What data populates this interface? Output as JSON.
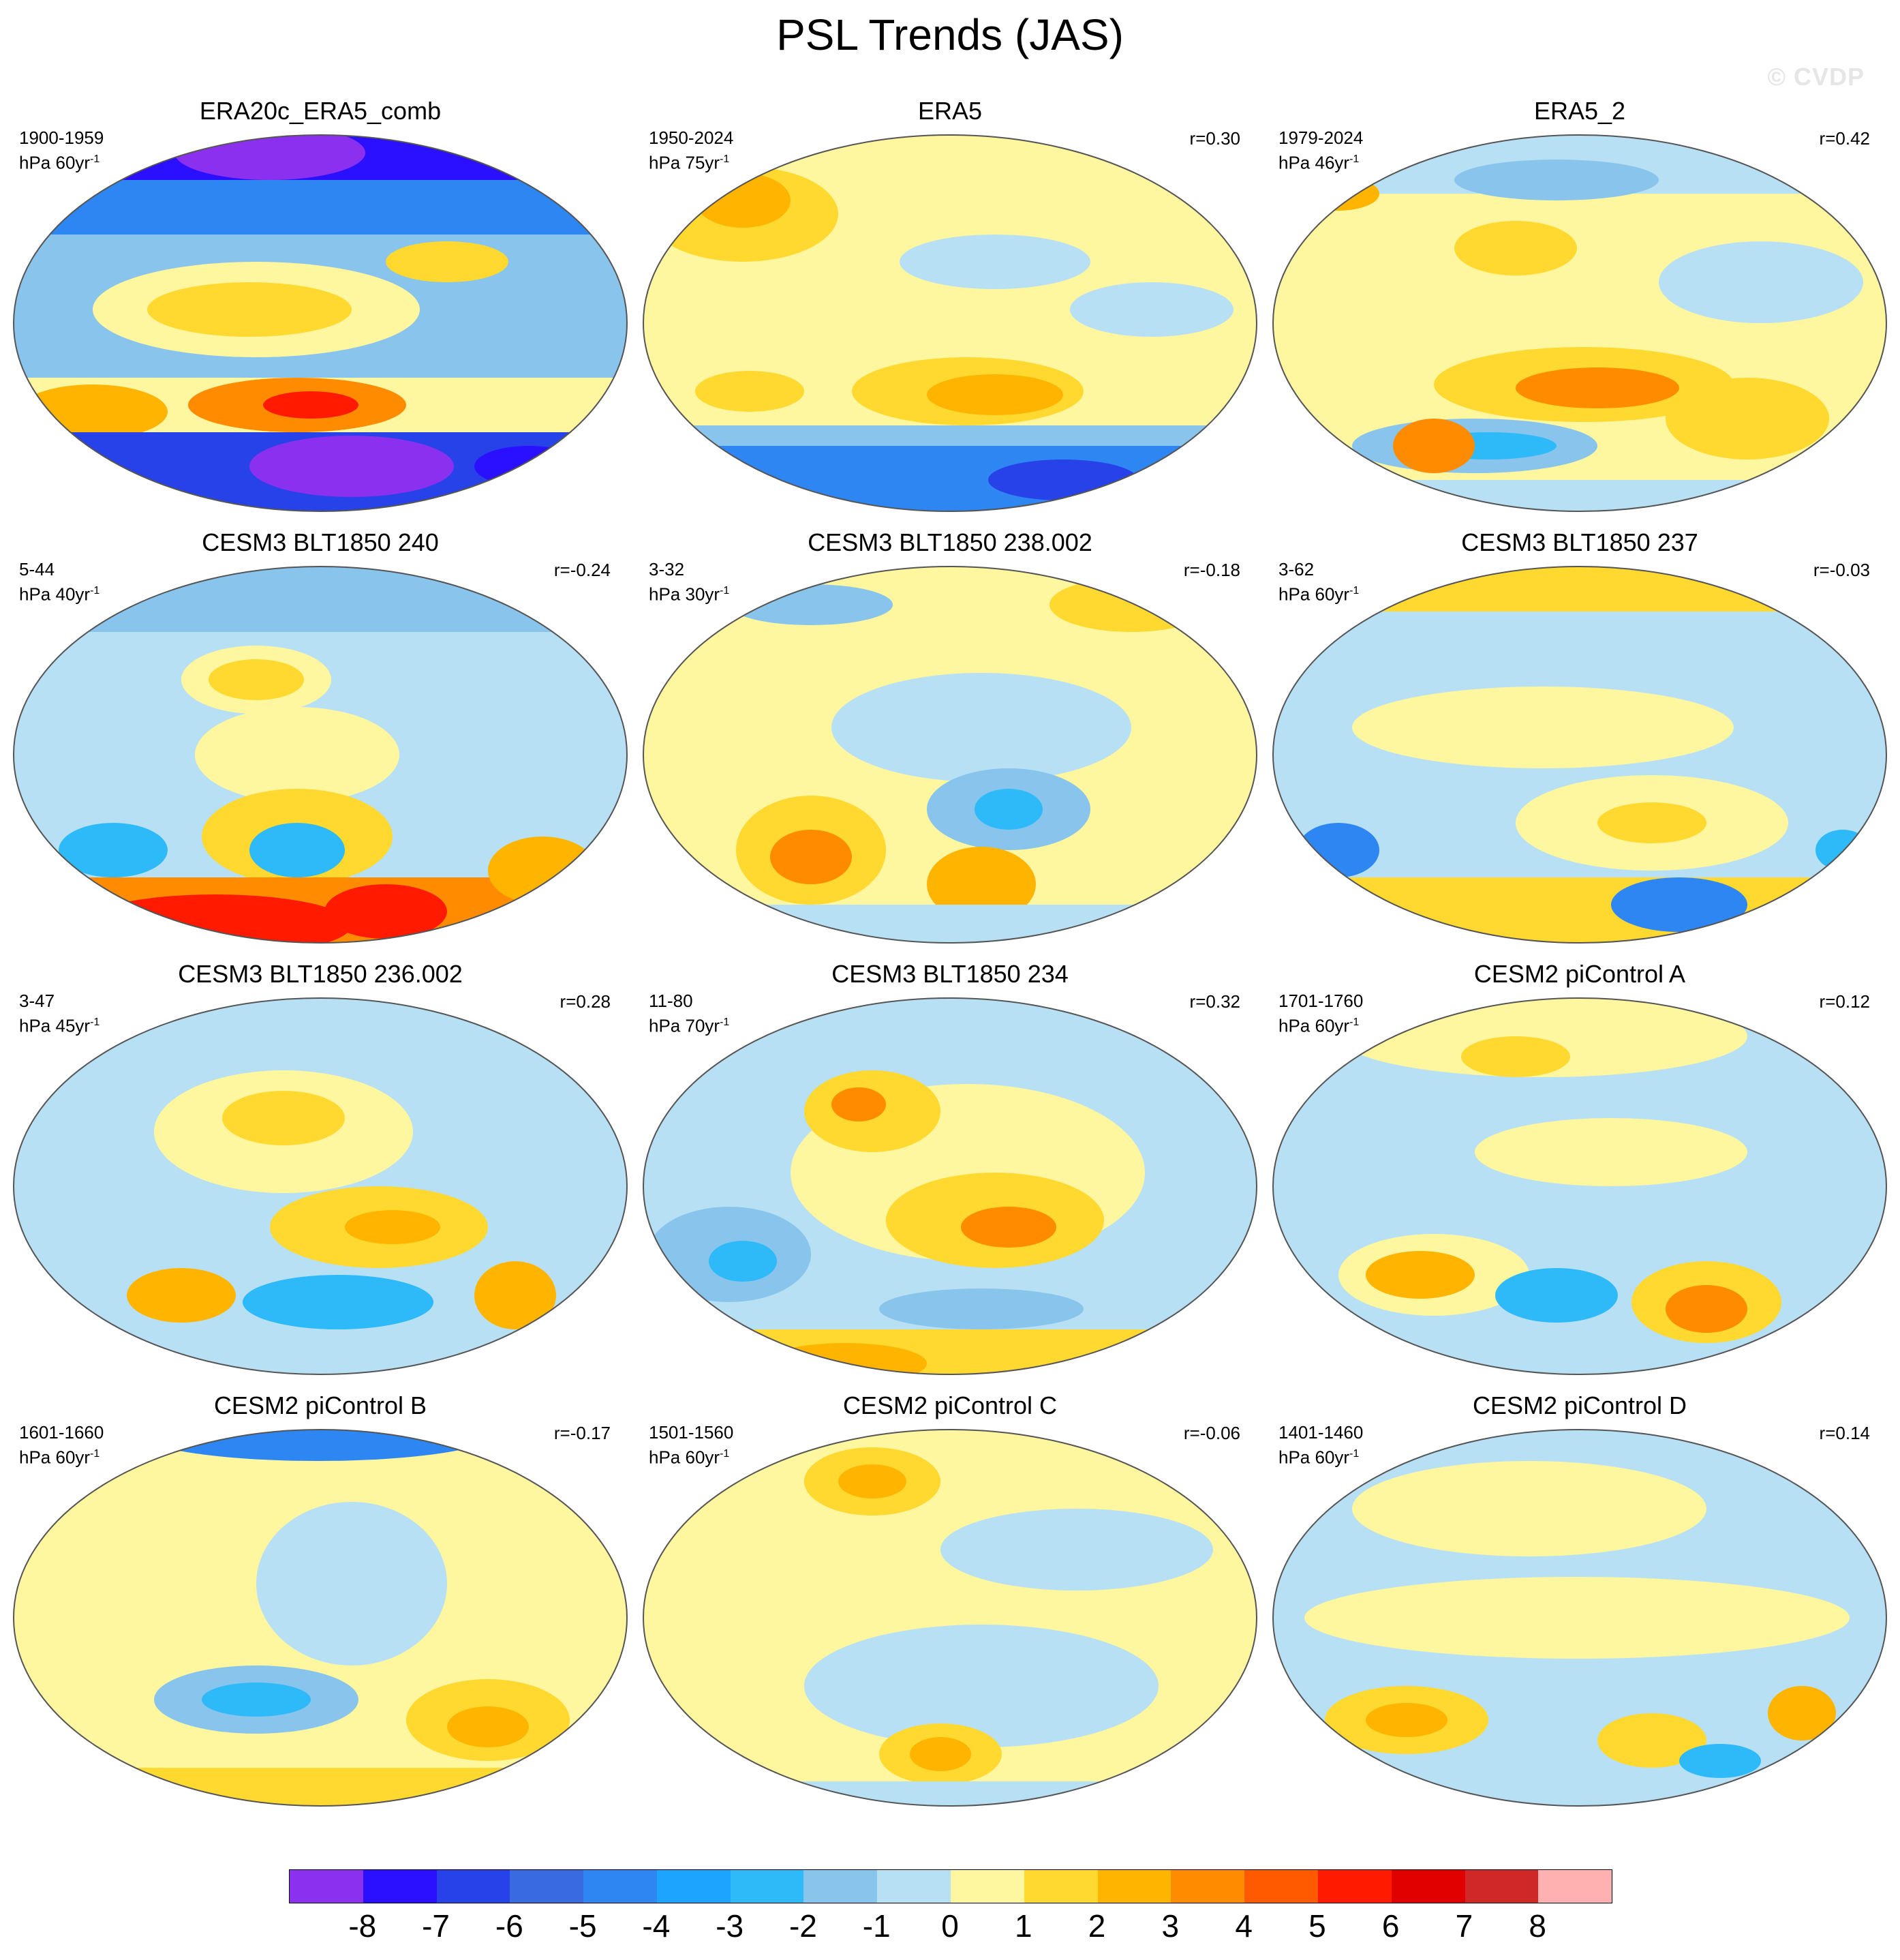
{
  "title": "PSL Trends (JAS)",
  "watermark": "© CVDP",
  "palette": [
    "#8c30f0",
    "#2a10ff",
    "#2642e8",
    "#3a6ae0",
    "#2e86f2",
    "#1ca4ff",
    "#2ebaf8",
    "#88c4ec",
    "#b8e0f4",
    "#fff6a0",
    "#ffd830",
    "#ffb400",
    "#ff8c00",
    "#ff5a00",
    "#ff1a00",
    "#e00000",
    "#d02828",
    "#ffb0b0"
  ],
  "colorbar_labels": [
    "-8",
    "-7",
    "-6",
    "-5",
    "-4",
    "-3",
    "-2",
    "-1",
    "0",
    "1",
    "2",
    "3",
    "4",
    "5",
    "6",
    "7",
    "8"
  ],
  "panels": [
    {
      "title": "ERA20c_ERA5_comb",
      "period": "1900-1959",
      "units": "hPa 60yr",
      "exp": "-1",
      "corr": ""
    },
    {
      "title": "ERA5",
      "period": "1950-2024",
      "units": "hPa 75yr",
      "exp": "-1",
      "corr": "r=0.30"
    },
    {
      "title": "ERA5_2",
      "period": "1979-2024",
      "units": "hPa 46yr",
      "exp": "-1",
      "corr": "r=0.42"
    },
    {
      "title": "CESM3 BLT1850 240",
      "period": "5-44",
      "units": "hPa 40yr",
      "exp": "-1",
      "corr": "r=-0.24"
    },
    {
      "title": "CESM3 BLT1850 238.002",
      "period": "3-32",
      "units": "hPa 30yr",
      "exp": "-1",
      "corr": "r=-0.18"
    },
    {
      "title": "CESM3 BLT1850 237",
      "period": "3-62",
      "units": "hPa 60yr",
      "exp": "-1",
      "corr": "r=-0.03"
    },
    {
      "title": "CESM3 BLT1850 236.002",
      "period": "3-47",
      "units": "hPa 45yr",
      "exp": "-1",
      "corr": "r=0.28"
    },
    {
      "title": "CESM3 BLT1850 234",
      "period": "11-80",
      "units": "hPa 70yr",
      "exp": "-1",
      "corr": "r=0.32"
    },
    {
      "title": "CESM2 piControl A",
      "period": "1701-1760",
      "units": "hPa 60yr",
      "exp": "-1",
      "corr": "r=0.12"
    },
    {
      "title": "CESM2 piControl B",
      "period": "1601-1660",
      "units": "hPa 60yr",
      "exp": "-1",
      "corr": "r=-0.17"
    },
    {
      "title": "CESM2 piControl C",
      "period": "1501-1560",
      "units": "hPa 60yr",
      "exp": "-1",
      "corr": "r=-0.06"
    },
    {
      "title": "CESM2 piControl D",
      "period": "1401-1460",
      "units": "hPa 60yr",
      "exp": "-1",
      "corr": "r=0.14"
    }
  ]
}
